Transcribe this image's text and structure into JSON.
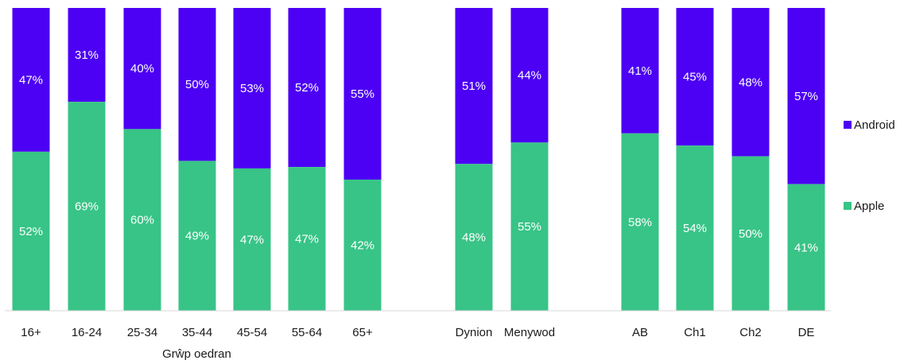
{
  "chart_data": {
    "type": "bar",
    "stacked": true,
    "categories": [
      "16+",
      "16-24",
      "25-34",
      "35-44",
      "45-54",
      "55-64",
      "65+",
      "Dynion",
      "Menywod",
      "AB",
      "Ch1",
      "Ch2",
      "DE"
    ],
    "series": [
      {
        "name": "Apple",
        "color": "#38c487",
        "values": [
          52,
          69,
          60,
          49,
          47,
          47,
          42,
          48,
          55,
          58,
          54,
          50,
          41
        ]
      },
      {
        "name": "Android",
        "color": "#4c00f4",
        "values": [
          47,
          31,
          40,
          50,
          53,
          52,
          55,
          51,
          44,
          41,
          45,
          48,
          57
        ]
      }
    ],
    "category_groups": [
      {
        "label": "Grŵp oedran",
        "categories": [
          "16+",
          "16-24",
          "25-34",
          "35-44",
          "45-54",
          "55-64",
          "65+"
        ]
      },
      {
        "label": "",
        "categories": [
          "Dynion",
          "Menywod"
        ]
      },
      {
        "label": "",
        "categories": [
          "AB",
          "Ch1",
          "Ch2",
          "DE"
        ]
      }
    ],
    "value_format": "percent",
    "legend": {
      "position": "right",
      "order": [
        "Android",
        "Apple"
      ]
    },
    "ylim": [
      0,
      100
    ],
    "grid": false,
    "axis_color": "#d9d9d9"
  }
}
